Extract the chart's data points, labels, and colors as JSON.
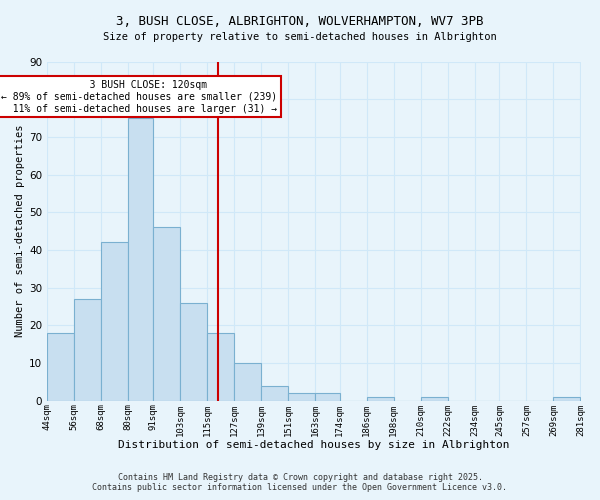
{
  "title": "3, BUSH CLOSE, ALBRIGHTON, WOLVERHAMPTON, WV7 3PB",
  "subtitle": "Size of property relative to semi-detached houses in Albrighton",
  "xlabel": "Distribution of semi-detached houses by size in Albrighton",
  "ylabel": "Number of semi-detached properties",
  "bar_color": "#c8dff0",
  "bar_edge_color": "#7ab0d0",
  "background_color": "#e8f4fb",
  "grid_color": "#d0e8f8",
  "bin_edges": [
    44,
    56,
    68,
    80,
    91,
    103,
    115,
    127,
    139,
    151,
    163,
    174,
    186,
    198,
    210,
    222,
    234,
    245,
    257,
    269,
    281
  ],
  "bin_labels": [
    "44sqm",
    "56sqm",
    "68sqm",
    "80sqm",
    "91sqm",
    "103sqm",
    "115sqm",
    "127sqm",
    "139sqm",
    "151sqm",
    "163sqm",
    "174sqm",
    "186sqm",
    "198sqm",
    "210sqm",
    "222sqm",
    "234sqm",
    "245sqm",
    "257sqm",
    "269sqm",
    "281sqm"
  ],
  "counts": [
    18,
    27,
    42,
    75,
    46,
    26,
    18,
    10,
    4,
    2,
    2,
    0,
    1,
    0,
    1,
    0,
    0,
    0,
    0,
    1
  ],
  "property_size": 120,
  "property_label": "3 BUSH CLOSE: 120sqm",
  "pct_smaller": 89,
  "count_smaller": 239,
  "pct_larger": 11,
  "count_larger": 31,
  "annotation_line_color": "#cc0000",
  "annotation_box_color": "#ffffff",
  "annotation_box_edge": "#cc0000",
  "footer1": "Contains HM Land Registry data © Crown copyright and database right 2025.",
  "footer2": "Contains public sector information licensed under the Open Government Licence v3.0.",
  "ylim": [
    0,
    90
  ],
  "yticks": [
    0,
    10,
    20,
    30,
    40,
    50,
    60,
    70,
    80,
    90
  ]
}
